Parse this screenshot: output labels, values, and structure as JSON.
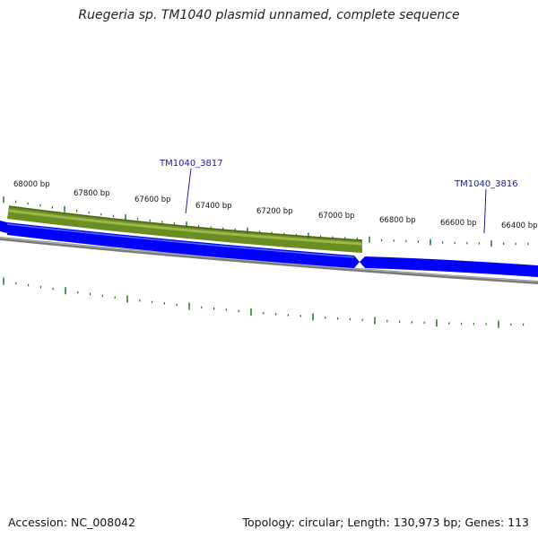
{
  "title": "Ruegeria sp. TM1040 plasmid unnamed, complete sequence",
  "footer": {
    "accession": "Accession: NC_008042",
    "summary": "Topology: circular; Length: 130,973 bp; Genes: 113"
  },
  "colors": {
    "forward_gene": "#6b8e23",
    "reverse_gene": "#0000ff",
    "backbone": "#808080",
    "ticks": "#1a7a1a",
    "gene_label": "#1a1a9c"
  },
  "ruler_labels": [
    "68000 bp",
    "67800 bp",
    "67600 bp",
    "67400 bp",
    "67200 bp",
    "67000 bp",
    "66800 bp",
    "66600 bp",
    "66400 bp"
  ],
  "genes": [
    {
      "label": "TM1040_3817",
      "strand": "forward"
    },
    {
      "label": "TM1040_3816",
      "strand": "reverse"
    }
  ]
}
